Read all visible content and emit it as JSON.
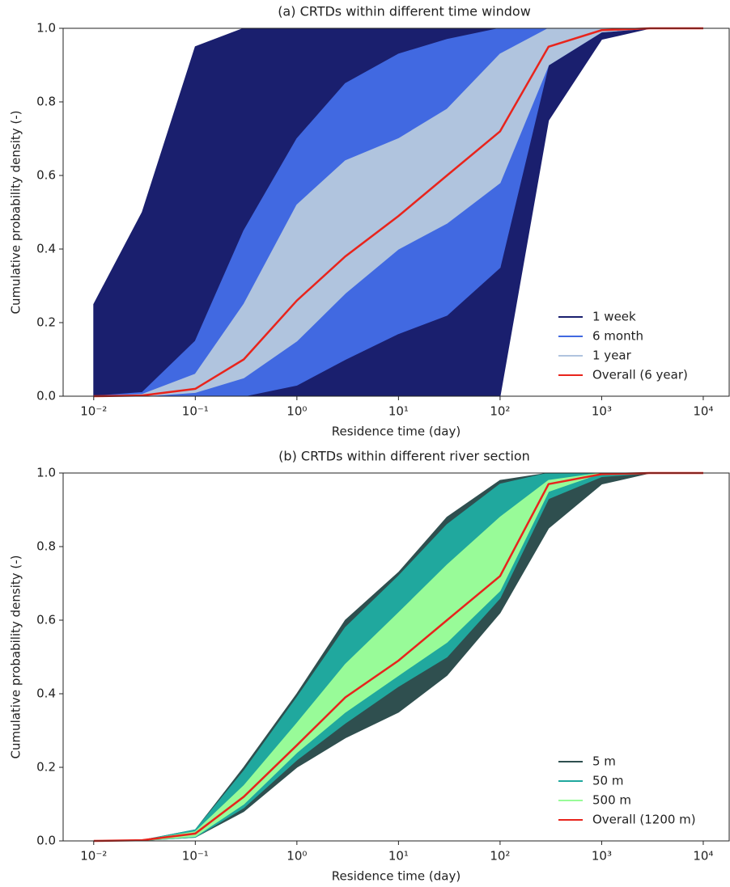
{
  "chart_data": [
    {
      "type": "line",
      "title": "(a) CRTDs within different time window",
      "xlabel": "Residence time (day)",
      "ylabel": "Cumulative probability density (-)",
      "xscale": "log",
      "xlim": [
        0.005,
        18000
      ],
      "ylim": [
        0,
        1
      ],
      "xticks": [
        {
          "value": 0.01,
          "label": "10⁻²"
        },
        {
          "value": 0.1,
          "label": "10⁻¹"
        },
        {
          "value": 1,
          "label": "10⁰"
        },
        {
          "value": 10,
          "label": "10¹"
        },
        {
          "value": 100,
          "label": "10²"
        },
        {
          "value": 1000,
          "label": "10³"
        },
        {
          "value": 10000,
          "label": "10⁴"
        }
      ],
      "yticks": [
        {
          "value": 0,
          "label": "0.0"
        },
        0.2,
        0.4,
        0.6,
        0.8,
        {
          "value": 1,
          "label": "1.0"
        }
      ],
      "legend": "lower right",
      "x": [
        0.01,
        0.03,
        0.1,
        0.3,
        1,
        3,
        10,
        30,
        100,
        300,
        1000,
        3000,
        10000
      ],
      "series": [
        {
          "name": "1 week",
          "color": "#1a1f6e",
          "high": [
            0.25,
            0.5,
            0.95,
            1,
            1,
            1,
            1,
            1,
            1,
            1,
            1,
            1,
            1
          ],
          "low": [
            0,
            0,
            0,
            0,
            0,
            0,
            0,
            0,
            0,
            0.75,
            0.97,
            1,
            1
          ]
        },
        {
          "name": "6 month",
          "color": "#4169e1",
          "high": [
            0,
            0.01,
            0.15,
            0.45,
            0.7,
            0.85,
            0.93,
            0.97,
            1,
            1,
            1,
            1,
            1
          ],
          "low": [
            0,
            0,
            0,
            0,
            0.03,
            0.1,
            0.17,
            0.22,
            0.35,
            0.9,
            0.99,
            1,
            1
          ]
        },
        {
          "name": "1 year",
          "color": "#b0c4de",
          "high": [
            0,
            0.005,
            0.06,
            0.25,
            0.52,
            0.64,
            0.7,
            0.78,
            0.93,
            1,
            1,
            1,
            1
          ],
          "low": [
            0,
            0,
            0.01,
            0.05,
            0.15,
            0.28,
            0.4,
            0.47,
            0.58,
            0.9,
            0.99,
            1,
            1
          ]
        },
        {
          "name": "Overall (6 year)",
          "color": "#e8241c",
          "values": [
            0,
            0.002,
            0.02,
            0.1,
            0.26,
            0.38,
            0.49,
            0.6,
            0.72,
            0.95,
            0.995,
            1,
            1
          ]
        }
      ]
    },
    {
      "type": "line",
      "title": "(b) CRTDs within different river section",
      "xlabel": "Residence time (day)",
      "ylabel": "Cumulative probability density (-)",
      "xscale": "log",
      "xlim": [
        0.005,
        18000
      ],
      "ylim": [
        0,
        1
      ],
      "xticks": [
        {
          "value": 0.01,
          "label": "10⁻²"
        },
        {
          "value": 0.1,
          "label": "10⁻¹"
        },
        {
          "value": 1,
          "label": "10⁰"
        },
        {
          "value": 10,
          "label": "10¹"
        },
        {
          "value": 100,
          "label": "10²"
        },
        {
          "value": 1000,
          "label": "10³"
        },
        {
          "value": 10000,
          "label": "10⁴"
        }
      ],
      "yticks": [
        {
          "value": 0,
          "label": "0.0"
        },
        0.2,
        0.4,
        0.6,
        0.8,
        {
          "value": 1,
          "label": "1.0"
        }
      ],
      "legend": "lower right",
      "x": [
        0.01,
        0.03,
        0.1,
        0.3,
        1,
        3,
        10,
        30,
        100,
        300,
        1000,
        3000,
        10000
      ],
      "series": [
        {
          "name": "5 m",
          "color": "#2f4f4f",
          "high": [
            0,
            0.002,
            0.03,
            0.2,
            0.4,
            0.6,
            0.73,
            0.88,
            0.98,
            1,
            1,
            1,
            1
          ],
          "low": [
            0,
            0.001,
            0.01,
            0.08,
            0.2,
            0.28,
            0.35,
            0.45,
            0.62,
            0.85,
            0.97,
            1,
            1
          ]
        },
        {
          "name": "50 m",
          "color": "#20a89e",
          "high": [
            0,
            0.002,
            0.03,
            0.19,
            0.39,
            0.58,
            0.72,
            0.86,
            0.97,
            1,
            1,
            1,
            1
          ],
          "low": [
            0,
            0.001,
            0.01,
            0.09,
            0.22,
            0.32,
            0.42,
            0.5,
            0.66,
            0.93,
            0.99,
            1,
            1
          ]
        },
        {
          "name": "500 m",
          "color": "#98fb98",
          "high": [
            0,
            0.002,
            0.025,
            0.15,
            0.32,
            0.48,
            0.62,
            0.75,
            0.88,
            0.98,
            1,
            1,
            1
          ],
          "low": [
            0,
            0.001,
            0.012,
            0.1,
            0.24,
            0.35,
            0.45,
            0.54,
            0.68,
            0.95,
            1,
            1,
            1
          ]
        },
        {
          "name": "Overall (1200 m)",
          "color": "#e8241c",
          "values": [
            0,
            0.002,
            0.02,
            0.12,
            0.26,
            0.39,
            0.49,
            0.6,
            0.72,
            0.97,
            0.997,
            1,
            1
          ]
        }
      ]
    }
  ]
}
